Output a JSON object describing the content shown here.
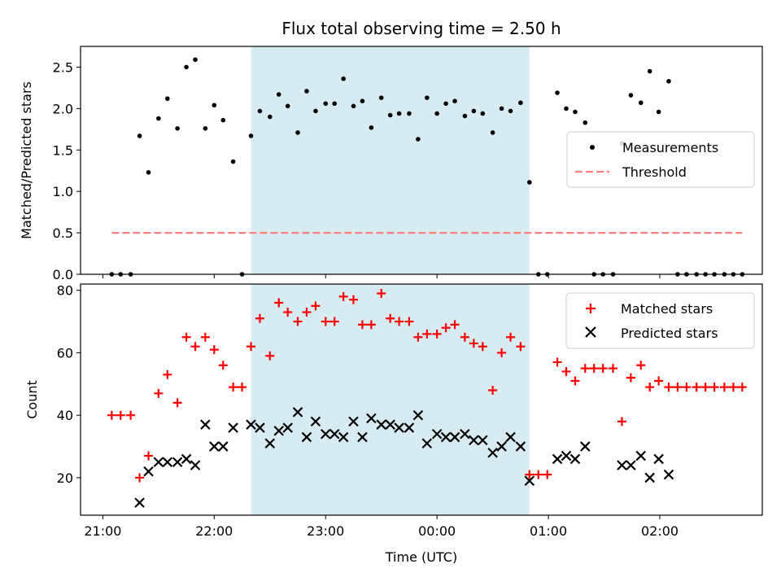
{
  "chart_data": {
    "type": "scatter",
    "title": "Flux total observing time = 2.50 h",
    "xlabel": "Time (UTC)",
    "x_axis": {
      "unit": "time of day (UTC), hours since 21:00",
      "ticks": [
        {
          "v": 0,
          "label": "21:00"
        },
        {
          "v": 1,
          "label": "22:00"
        },
        {
          "v": 2,
          "label": "23:00"
        },
        {
          "v": 3,
          "label": "00:00"
        },
        {
          "v": 4,
          "label": "01:00"
        },
        {
          "v": 5,
          "label": "02:00"
        }
      ],
      "xlim": [
        -0.2,
        5.92
      ]
    },
    "shaded_interval": {
      "start": 1.33,
      "end": 3.83,
      "color": "#add8e6"
    },
    "top_panel": {
      "ylabel": "Matched/Predicted stars",
      "ylim": [
        0,
        2.75
      ],
      "yticks": [
        "0.0",
        "0.5",
        "1.0",
        "1.5",
        "2.0",
        "2.5"
      ],
      "legend_position": "center-right",
      "series": [
        {
          "name": "Measurements",
          "marker": "dot",
          "color": "#000000",
          "points": [
            [
              0.08,
              0.0
            ],
            [
              0.16,
              0.0
            ],
            [
              0.25,
              0.0
            ],
            [
              0.33,
              1.67
            ],
            [
              0.41,
              1.23
            ],
            [
              0.5,
              1.88
            ],
            [
              0.58,
              2.12
            ],
            [
              0.67,
              1.76
            ],
            [
              0.75,
              2.5
            ],
            [
              0.83,
              2.59
            ],
            [
              0.92,
              1.76
            ],
            [
              1.0,
              2.04
            ],
            [
              1.08,
              1.86
            ],
            [
              1.17,
              1.36
            ],
            [
              1.25,
              0.0
            ],
            [
              1.33,
              1.67
            ],
            [
              1.41,
              1.97
            ],
            [
              1.5,
              1.9
            ],
            [
              1.58,
              2.17
            ],
            [
              1.66,
              2.03
            ],
            [
              1.75,
              1.71
            ],
            [
              1.83,
              2.21
            ],
            [
              1.91,
              1.97
            ],
            [
              2.0,
              2.06
            ],
            [
              2.08,
              2.06
            ],
            [
              2.16,
              2.36
            ],
            [
              2.25,
              2.03
            ],
            [
              2.33,
              2.09
            ],
            [
              2.41,
              1.77
            ],
            [
              2.5,
              2.13
            ],
            [
              2.58,
              1.92
            ],
            [
              2.66,
              1.94
            ],
            [
              2.75,
              1.94
            ],
            [
              2.83,
              1.63
            ],
            [
              2.91,
              2.13
            ],
            [
              3.0,
              1.94
            ],
            [
              3.08,
              2.06
            ],
            [
              3.16,
              2.09
            ],
            [
              3.25,
              1.91
            ],
            [
              3.33,
              1.97
            ],
            [
              3.41,
              1.94
            ],
            [
              3.5,
              1.71
            ],
            [
              3.58,
              2.0
            ],
            [
              3.66,
              1.97
            ],
            [
              3.75,
              2.07
            ],
            [
              3.83,
              1.11
            ],
            [
              3.91,
              0.0
            ],
            [
              3.99,
              0.0
            ],
            [
              4.08,
              2.19
            ],
            [
              4.16,
              2.0
            ],
            [
              4.24,
              1.96
            ],
            [
              4.33,
              1.83
            ],
            [
              4.41,
              0.0
            ],
            [
              4.49,
              0.0
            ],
            [
              4.58,
              0.0
            ],
            [
              4.66,
              1.58
            ],
            [
              4.74,
              2.16
            ],
            [
              4.83,
              2.07
            ],
            [
              4.91,
              2.45
            ],
            [
              4.99,
              1.96
            ],
            [
              5.08,
              2.33
            ],
            [
              5.16,
              0.0
            ],
            [
              5.24,
              0.0
            ],
            [
              5.33,
              0.0
            ],
            [
              5.41,
              0.0
            ],
            [
              5.49,
              0.0
            ],
            [
              5.58,
              0.0
            ],
            [
              5.66,
              0.0
            ],
            [
              5.74,
              0.0
            ]
          ]
        },
        {
          "name": "Threshold",
          "style": "dashed",
          "color": "#ff7f7f",
          "value": 0.5,
          "x_range": [
            0.08,
            5.74
          ]
        }
      ]
    },
    "bottom_panel": {
      "ylabel": "Count",
      "ylim": [
        8,
        82
      ],
      "yticks": [
        "20",
        "40",
        "60",
        "80"
      ],
      "legend_position": "top-right",
      "series": [
        {
          "name": "Matched stars",
          "marker": "plus",
          "color": "#ff0000",
          "points": [
            [
              0.08,
              40
            ],
            [
              0.16,
              40
            ],
            [
              0.25,
              40
            ],
            [
              0.33,
              20
            ],
            [
              0.41,
              27
            ],
            [
              0.5,
              47
            ],
            [
              0.58,
              53
            ],
            [
              0.67,
              44
            ],
            [
              0.75,
              65
            ],
            [
              0.83,
              62
            ],
            [
              0.92,
              65
            ],
            [
              1.0,
              61
            ],
            [
              1.08,
              56
            ],
            [
              1.17,
              49
            ],
            [
              1.25,
              49
            ],
            [
              1.33,
              62
            ],
            [
              1.41,
              71
            ],
            [
              1.5,
              59
            ],
            [
              1.58,
              76
            ],
            [
              1.66,
              73
            ],
            [
              1.75,
              70
            ],
            [
              1.83,
              73
            ],
            [
              1.91,
              75
            ],
            [
              2.0,
              70
            ],
            [
              2.08,
              70
            ],
            [
              2.16,
              78
            ],
            [
              2.25,
              77
            ],
            [
              2.33,
              69
            ],
            [
              2.41,
              69
            ],
            [
              2.5,
              79
            ],
            [
              2.58,
              71
            ],
            [
              2.66,
              70
            ],
            [
              2.75,
              70
            ],
            [
              2.83,
              65
            ],
            [
              2.91,
              66
            ],
            [
              3.0,
              66
            ],
            [
              3.08,
              68
            ],
            [
              3.16,
              69
            ],
            [
              3.25,
              65
            ],
            [
              3.33,
              63
            ],
            [
              3.41,
              62
            ],
            [
              3.5,
              48
            ],
            [
              3.58,
              60
            ],
            [
              3.66,
              65
            ],
            [
              3.75,
              62
            ],
            [
              3.83,
              21
            ],
            [
              3.91,
              21
            ],
            [
              3.99,
              21
            ],
            [
              4.08,
              57
            ],
            [
              4.16,
              54
            ],
            [
              4.24,
              51
            ],
            [
              4.33,
              55
            ],
            [
              4.41,
              55
            ],
            [
              4.49,
              55
            ],
            [
              4.58,
              55
            ],
            [
              4.66,
              38
            ],
            [
              4.74,
              52
            ],
            [
              4.83,
              56
            ],
            [
              4.91,
              49
            ],
            [
              4.99,
              51
            ],
            [
              5.08,
              49
            ],
            [
              5.16,
              49
            ],
            [
              5.24,
              49
            ],
            [
              5.33,
              49
            ],
            [
              5.41,
              49
            ],
            [
              5.49,
              49
            ],
            [
              5.58,
              49
            ],
            [
              5.66,
              49
            ],
            [
              5.74,
              49
            ]
          ]
        },
        {
          "name": "Predicted stars",
          "marker": "x",
          "color": "#000000",
          "points": [
            [
              0.33,
              12
            ],
            [
              0.41,
              22
            ],
            [
              0.5,
              25
            ],
            [
              0.58,
              25
            ],
            [
              0.67,
              25
            ],
            [
              0.75,
              26
            ],
            [
              0.83,
              24
            ],
            [
              0.92,
              37
            ],
            [
              1.0,
              30
            ],
            [
              1.08,
              30
            ],
            [
              1.17,
              36
            ],
            [
              1.33,
              37
            ],
            [
              1.41,
              36
            ],
            [
              1.5,
              31
            ],
            [
              1.58,
              35
            ],
            [
              1.66,
              36
            ],
            [
              1.75,
              41
            ],
            [
              1.83,
              33
            ],
            [
              1.91,
              38
            ],
            [
              2.0,
              34
            ],
            [
              2.08,
              34
            ],
            [
              2.16,
              33
            ],
            [
              2.25,
              38
            ],
            [
              2.33,
              33
            ],
            [
              2.41,
              39
            ],
            [
              2.5,
              37
            ],
            [
              2.58,
              37
            ],
            [
              2.66,
              36
            ],
            [
              2.75,
              36
            ],
            [
              2.83,
              40
            ],
            [
              2.91,
              31
            ],
            [
              3.0,
              34
            ],
            [
              3.08,
              33
            ],
            [
              3.16,
              33
            ],
            [
              3.25,
              34
            ],
            [
              3.33,
              32
            ],
            [
              3.41,
              32
            ],
            [
              3.5,
              28
            ],
            [
              3.58,
              30
            ],
            [
              3.66,
              33
            ],
            [
              3.75,
              30
            ],
            [
              3.83,
              19
            ],
            [
              4.08,
              26
            ],
            [
              4.16,
              27
            ],
            [
              4.24,
              26
            ],
            [
              4.33,
              30
            ],
            [
              4.66,
              24
            ],
            [
              4.74,
              24
            ],
            [
              4.83,
              27
            ],
            [
              4.91,
              20
            ],
            [
              4.99,
              26
            ],
            [
              5.08,
              21
            ]
          ]
        }
      ]
    }
  }
}
